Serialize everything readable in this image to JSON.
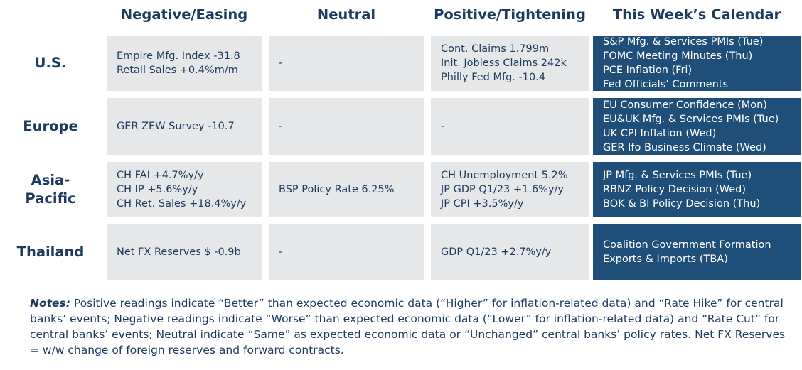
{
  "columns": [
    "Negative/Easing",
    "Neutral",
    "Positive/Tightening",
    "This Week’s Calendar"
  ],
  "rows": [
    {
      "region": "U.S.",
      "negative": [
        "Empire Mfg. Index -31.8",
        "Retail Sales +0.4%m/m"
      ],
      "neutral": [
        "-"
      ],
      "positive": [
        "Cont. Claims 1.799m",
        "Init. Jobless Claims 242k",
        "Philly Fed Mfg. -10.4"
      ],
      "calendar": [
        "S&P Mfg. & Services PMIs (Tue)",
        "FOMC Meeting Minutes (Thu)",
        "PCE Inflation (Fri)",
        "Fed Officials’ Comments"
      ]
    },
    {
      "region": "Europe",
      "negative": [
        "GER ZEW Survey -10.7"
      ],
      "neutral": [
        "-"
      ],
      "positive": [
        "-"
      ],
      "calendar": [
        "EU Consumer Confidence (Mon)",
        "EU&UK Mfg. & Services PMIs (Tue)",
        "UK CPI Inflation (Wed)",
        "GER Ifo Business Climate (Wed)"
      ]
    },
    {
      "region": "Asia-\nPacific",
      "negative": [
        "CH FAI +4.7%y/y",
        "CH IP +5.6%y/y",
        "CH Ret. Sales +18.4%y/y"
      ],
      "neutral": [
        "BSP Policy Rate 6.25%"
      ],
      "positive": [
        "CH Unemployment 5.2%",
        "JP GDP Q1/23 +1.6%y/y",
        "JP CPI +3.5%y/y"
      ],
      "calendar": [
        "JP Mfg. & Services PMIs (Tue)",
        "RBNZ Policy Decision (Wed)",
        "BOK & BI Policy Decision (Thu)"
      ]
    },
    {
      "region": "Thailand",
      "negative": [
        "Net FX Reserves $ -0.9b"
      ],
      "neutral": [
        "-"
      ],
      "positive": [
        "GDP Q1/23 +2.7%y/y"
      ],
      "calendar": [
        "Coalition Government Formation",
        "Exports & Imports (TBA)"
      ]
    }
  ],
  "notes": {
    "label": "Notes:",
    "text": " Positive readings indicate “Better” than expected economic data (“Higher” for inflation-related data) and “Rate Hike” for central banks’ events; Negative readings indicate “Worse” than expected economic data (“Lower” for inflation-related data) and “Rate Cut” for central banks’ events; Neutral indicate “Same” as expected economic data or “Unchanged” central banks’ policy rates. Net FX Reserves = w/w change of foreign reserves and forward contracts."
  },
  "colors": {
    "header_text": "#1e3a5f",
    "cell_bg": "#e6e7e8",
    "calendar_bg": "#1f4e79",
    "calendar_text": "#ffffff"
  }
}
